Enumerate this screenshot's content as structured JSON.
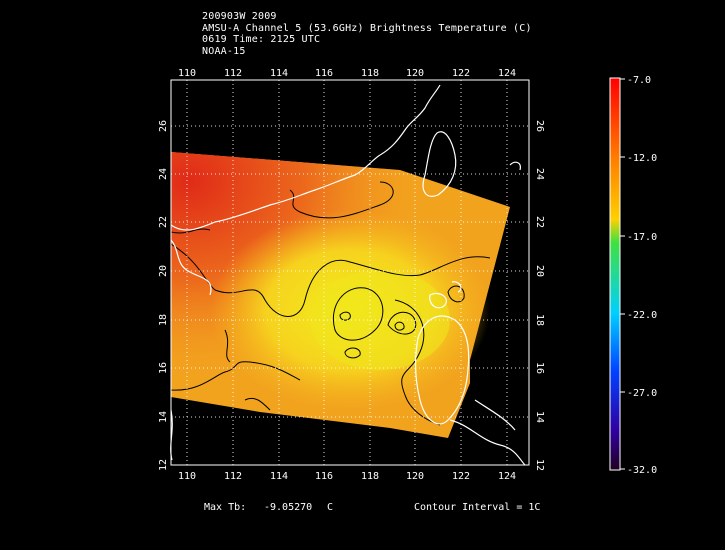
{
  "title": {
    "line1": "200903W 2009",
    "line2": "AMSU-A Channel 5 (53.6GHz) Brightness Temperature (C)",
    "line3": "0619 Time: 2125 UTC",
    "line4": "NOAA-15"
  },
  "map": {
    "lon_ticks": [
      "110",
      "112",
      "114",
      "116",
      "118",
      "120",
      "122",
      "124"
    ],
    "lat_ticks": [
      "12",
      "14",
      "16",
      "18",
      "20",
      "22",
      "24",
      "26"
    ],
    "lon_range": [
      109.2,
      125.2
    ],
    "lat_range": [
      12.0,
      27.8
    ],
    "swath_colors": {
      "warm": "#e8381a",
      "mid": "#f08a1c",
      "cool": "#f6c81e",
      "coolest": "#eef21a"
    },
    "coastline_color": "#ffffff",
    "contour_color": "#000000"
  },
  "colorbar": {
    "labels": [
      "-7.0",
      "-12.0",
      "-17.0",
      "-22.0",
      "-27.0",
      "-32.0"
    ],
    "stops": [
      "#ff0000",
      "#ff7a00",
      "#ffd000",
      "#40e040",
      "#00d0ff",
      "#0040ff",
      "#3000a0",
      "#200020"
    ]
  },
  "footer": {
    "max_label": "Max Tb:",
    "max_value": "-9.05270",
    "max_unit": "C",
    "contour": "Contour Interval = 1C"
  }
}
